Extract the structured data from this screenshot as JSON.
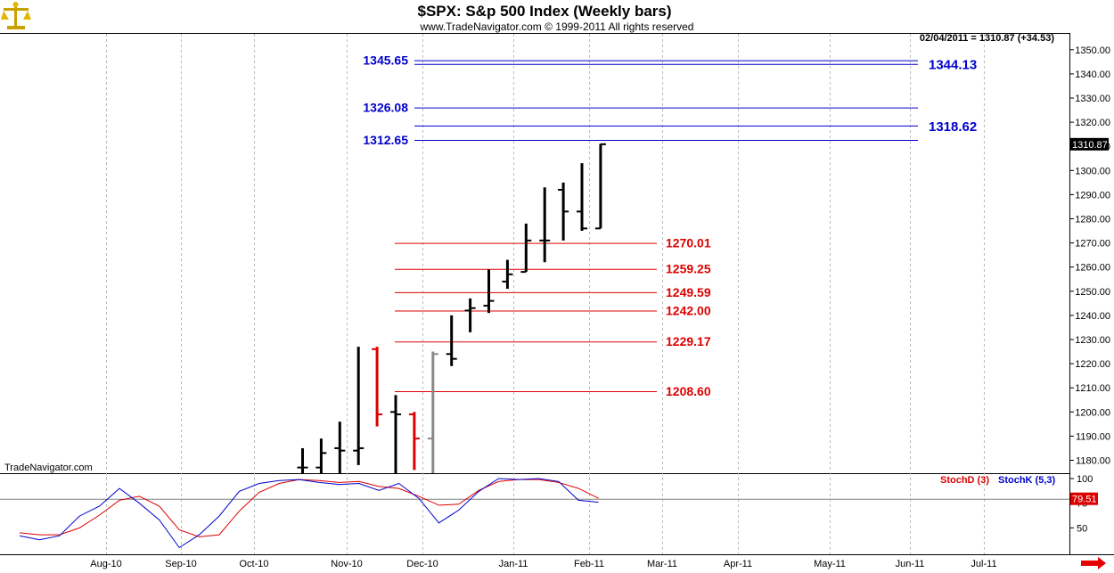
{
  "header": {
    "title": "$SPX:  S&p 500 Index  (Weekly bars)",
    "subtitle": "www.TradeNavigator.com © 1999-2011 All rights reserved",
    "last_quote": "02/04/2011 = 1310.87 (+34.53)",
    "watermark": "TradeNavigator.com",
    "logo_icon": "scales-logo-icon"
  },
  "colors": {
    "up_bar": "#000000",
    "down_bar": "#dd0000",
    "neutral_bar": "#888888",
    "blue_level": "#0000cc",
    "red_level": "#dd0000",
    "grid": "#bbbbbb",
    "price_badge_bg": "#000000",
    "stoch_badge_bg": "#dd0000"
  },
  "chart_data": [
    {
      "type": "ohlc",
      "name": "price",
      "title": "$SPX:  S&p 500 Index  (Weekly bars)",
      "ylim": [
        1174,
        1358
      ],
      "y_ticks": [
        1180,
        1190,
        1200,
        1210,
        1220,
        1230,
        1240,
        1250,
        1260,
        1270,
        1280,
        1290,
        1300,
        1310,
        1320,
        1330,
        1340,
        1350
      ],
      "y_tick_labels": [
        "1180.00",
        "1190.00",
        "1200.00",
        "1210.00",
        "1220.00",
        "1230.00",
        "1240.00",
        "1250.00",
        "1260.00",
        "1270.00",
        "1280.00",
        "1290.00",
        "1300.00",
        "1310.00",
        "1320.00",
        "1330.00",
        "1340.00",
        "1350.00"
      ],
      "x_labels": [
        "Aug-10",
        "Sep-10",
        "Oct-10",
        "Nov-10",
        "Dec-10",
        "Jan-11",
        "Feb-11",
        "Mar-11",
        "Apr-11",
        "May-11",
        "Jun-11",
        "Jul-11"
      ],
      "bars": [
        {
          "week": 0,
          "open": 1177,
          "high": 1185,
          "low": 1174,
          "close": 1177,
          "color": "black"
        },
        {
          "week": 1,
          "open": 1177,
          "high": 1189,
          "low": 1174,
          "close": 1183,
          "color": "black"
        },
        {
          "week": 2,
          "open": 1185,
          "high": 1196,
          "low": 1174,
          "close": 1184,
          "color": "black"
        },
        {
          "week": 3,
          "open": 1184,
          "high": 1227,
          "low": 1178,
          "close": 1185,
          "color": "black"
        },
        {
          "week": 4,
          "open": 1226,
          "high": 1227,
          "low": 1194,
          "close": 1199,
          "color": "red"
        },
        {
          "week": 5,
          "open": 1200,
          "high": 1207,
          "low": 1174,
          "close": 1199,
          "color": "black"
        },
        {
          "week": 6,
          "open": 1199,
          "high": 1200,
          "low": 1176,
          "close": 1189,
          "color": "red"
        },
        {
          "week": 7,
          "open": 1189,
          "high": 1225,
          "low": 1174,
          "close": 1224,
          "color": "gray"
        },
        {
          "week": 8,
          "open": 1224,
          "high": 1240,
          "low": 1219,
          "close": 1222,
          "color": "black"
        },
        {
          "week": 9,
          "open": 1242,
          "high": 1247,
          "low": 1233,
          "close": 1243,
          "color": "black"
        },
        {
          "week": 10,
          "open": 1244,
          "high": 1259,
          "low": 1241,
          "close": 1246,
          "color": "black"
        },
        {
          "week": 11,
          "open": 1254,
          "high": 1263,
          "low": 1251,
          "close": 1257,
          "color": "black"
        },
        {
          "week": 12,
          "open": 1258,
          "high": 1278,
          "low": 1258,
          "close": 1271,
          "color": "black"
        },
        {
          "week": 13,
          "open": 1271,
          "high": 1293,
          "low": 1262,
          "close": 1271,
          "color": "black"
        },
        {
          "week": 14,
          "open": 1292,
          "high": 1295,
          "low": 1271,
          "close": 1283,
          "color": "black"
        },
        {
          "week": 15,
          "open": 1283,
          "high": 1303,
          "low": 1275,
          "close": 1276,
          "color": "black"
        },
        {
          "week": 16,
          "open": 1276,
          "high": 1311,
          "low": 1276,
          "close": 1310.87,
          "color": "black"
        }
      ],
      "levels_blue": [
        {
          "value": 1345.65,
          "label": "1345.65",
          "side": "left"
        },
        {
          "value": 1344.13,
          "label": "1344.13",
          "side": "right"
        },
        {
          "value": 1326.08,
          "label": "1326.08",
          "side": "left"
        },
        {
          "value": 1318.62,
          "label": "1318.62",
          "side": "right"
        },
        {
          "value": 1312.65,
          "label": "1312.65",
          "side": "left"
        }
      ],
      "levels_red": [
        {
          "value": 1270.01,
          "label": "1270.01"
        },
        {
          "value": 1259.25,
          "label": "1259.25"
        },
        {
          "value": 1249.59,
          "label": "1249.59"
        },
        {
          "value": 1242.0,
          "label": "1242.00"
        },
        {
          "value": 1229.17,
          "label": "1229.17"
        },
        {
          "value": 1208.6,
          "label": "1208.60"
        }
      ],
      "last_price_label": "1310.87"
    },
    {
      "type": "line",
      "name": "stochastic",
      "ylim": [
        35,
        105
      ],
      "y_tick_labels": [
        "100",
        "75",
        "50"
      ],
      "y_ticks": [
        100,
        75,
        50
      ],
      "reference_line": 79.51,
      "badge_label": "79.51",
      "legend": [
        "StochD (3)",
        "StochK (5,3)"
      ],
      "series": [
        {
          "name": "StochD (3)",
          "color": "#dd0000",
          "points": [
            [
              0,
              45
            ],
            [
              1,
              43
            ],
            [
              2,
              43
            ],
            [
              3,
              50
            ],
            [
              4,
              63
            ],
            [
              5,
              78
            ],
            [
              6,
              82
            ],
            [
              7,
              72
            ],
            [
              8,
              48
            ],
            [
              9,
              41
            ],
            [
              10,
              43
            ],
            [
              11,
              67
            ],
            [
              12,
              86
            ],
            [
              13,
              95
            ],
            [
              14,
              99
            ],
            [
              15,
              98
            ],
            [
              16,
              96
            ],
            [
              17,
              97
            ],
            [
              18,
              92
            ],
            [
              19,
              90
            ],
            [
              20,
              82
            ],
            [
              21,
              73
            ],
            [
              22,
              74
            ],
            [
              23,
              88
            ],
            [
              24,
              97
            ],
            [
              25,
              99
            ],
            [
              26,
              99
            ],
            [
              27,
              96
            ],
            [
              28,
              90
            ],
            [
              29,
              80
            ]
          ]
        },
        {
          "name": "StochK (5,3)",
          "color": "#0000cc",
          "points": [
            [
              0,
              42
            ],
            [
              1,
              38
            ],
            [
              2,
              42
            ],
            [
              3,
              62
            ],
            [
              4,
              72
            ],
            [
              5,
              90
            ],
            [
              6,
              75
            ],
            [
              7,
              58
            ],
            [
              8,
              30
            ],
            [
              9,
              43
            ],
            [
              10,
              62
            ],
            [
              11,
              87
            ],
            [
              12,
              95
            ],
            [
              13,
              98
            ],
            [
              14,
              99
            ],
            [
              15,
              96
            ],
            [
              16,
              94
            ],
            [
              17,
              95
            ],
            [
              18,
              88
            ],
            [
              19,
              95
            ],
            [
              20,
              80
            ],
            [
              21,
              55
            ],
            [
              22,
              68
            ],
            [
              23,
              87
            ],
            [
              24,
              100
            ],
            [
              25,
              99
            ],
            [
              26,
              100
            ],
            [
              27,
              97
            ],
            [
              28,
              78
            ],
            [
              29,
              76
            ]
          ]
        }
      ]
    }
  ]
}
